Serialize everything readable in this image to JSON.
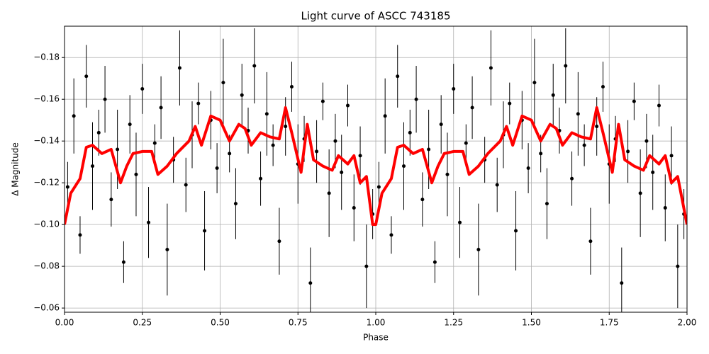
{
  "chart_data": {
    "type": "scatter",
    "title": "Light curve of ASCC 743185",
    "x_label": "Phase",
    "y_label": "Δ Magnitude",
    "xlim": [
      0,
      2
    ],
    "ylim": [
      -0.195,
      -0.058
    ],
    "y_inverted": true,
    "grid": true,
    "xticks": [
      {
        "value": 0,
        "label": "0.00"
      },
      0.25,
      {
        "value": 0.5,
        "label": "0.50"
      },
      0.75,
      {
        "value": 1,
        "label": "1.00"
      },
      1.25,
      {
        "value": 1.5,
        "label": "1.50"
      },
      1.75,
      {
        "value": 2,
        "label": "2.00"
      }
    ],
    "yticks": [
      {
        "value": -0.18,
        "label": "−0.18"
      },
      {
        "value": -0.16,
        "label": "−0.16"
      },
      {
        "value": -0.14,
        "label": "−0.14"
      },
      {
        "value": -0.12,
        "label": "−0.12"
      },
      {
        "value": -0.1,
        "label": "−0.10"
      },
      {
        "value": -0.08,
        "label": "−0.08"
      },
      {
        "value": -0.06,
        "label": "−0.06"
      }
    ],
    "series": [
      {
        "kind": "errorbar",
        "color": "#000000",
        "x": [
          0.01,
          0.03,
          0.05,
          0.07,
          0.09,
          0.11,
          0.13,
          0.15,
          0.17,
          0.19,
          0.21,
          0.23,
          0.25,
          0.27,
          0.29,
          0.31,
          0.33,
          0.35,
          0.37,
          0.39,
          0.41,
          0.43,
          0.45,
          0.47,
          0.49,
          0.51,
          0.53,
          0.55,
          0.57,
          0.59,
          0.61,
          0.63,
          0.65,
          0.67,
          0.69,
          0.71,
          0.73,
          0.75,
          0.77,
          0.79,
          0.81,
          0.83,
          0.85,
          0.87,
          0.89,
          0.91,
          0.93,
          0.95,
          0.97,
          0.99,
          1.01,
          1.03,
          1.05,
          1.07,
          1.09,
          1.11,
          1.13,
          1.15,
          1.17,
          1.19,
          1.21,
          1.23,
          1.25,
          1.27,
          1.29,
          1.31,
          1.33,
          1.35,
          1.37,
          1.39,
          1.41,
          1.43,
          1.45,
          1.47,
          1.49,
          1.51,
          1.53,
          1.55,
          1.57,
          1.59,
          1.61,
          1.63,
          1.65,
          1.67,
          1.69,
          1.71,
          1.73,
          1.75,
          1.77,
          1.79,
          1.81,
          1.83,
          1.85,
          1.87,
          1.89,
          1.91,
          1.93,
          1.95,
          1.97,
          1.99
        ],
        "values": [
          -0.118,
          -0.152,
          -0.095,
          -0.171,
          -0.128,
          -0.144,
          -0.16,
          -0.112,
          -0.136,
          -0.082,
          -0.148,
          -0.124,
          -0.165,
          -0.101,
          -0.139,
          -0.156,
          -0.088,
          -0.131,
          -0.175,
          -0.119,
          -0.143,
          -0.158,
          -0.097,
          -0.15,
          -0.127,
          -0.168,
          -0.134,
          -0.11,
          -0.162,
          -0.145,
          -0.176,
          -0.122,
          -0.153,
          -0.138,
          -0.092,
          -0.147,
          -0.166,
          -0.129,
          -0.141,
          -0.072,
          -0.135,
          -0.159,
          -0.115,
          -0.14,
          -0.125,
          -0.157,
          -0.108,
          -0.133,
          -0.08,
          -0.105,
          -0.118,
          -0.152,
          -0.095,
          -0.171,
          -0.128,
          -0.144,
          -0.16,
          -0.112,
          -0.136,
          -0.082,
          -0.148,
          -0.124,
          -0.165,
          -0.101,
          -0.139,
          -0.156,
          -0.088,
          -0.131,
          -0.175,
          -0.119,
          -0.143,
          -0.158,
          -0.097,
          -0.15,
          -0.127,
          -0.168,
          -0.134,
          -0.11,
          -0.162,
          -0.145,
          -0.176,
          -0.122,
          -0.153,
          -0.138,
          -0.092,
          -0.147,
          -0.166,
          -0.129,
          -0.141,
          -0.072,
          -0.135,
          -0.159,
          -0.115,
          -0.14,
          -0.125,
          -0.157,
          -0.108,
          -0.133,
          -0.08,
          -0.105
        ],
        "errors": [
          0.012,
          0.018,
          0.009,
          0.015,
          0.021,
          0.011,
          0.016,
          0.013,
          0.019,
          0.01,
          0.014,
          0.02,
          0.012,
          0.017,
          0.009,
          0.015,
          0.022,
          0.011,
          0.018,
          0.013,
          0.016,
          0.01,
          0.019,
          0.014,
          0.012,
          0.021,
          0.009,
          0.017,
          0.015,
          0.011,
          0.018,
          0.013,
          0.02,
          0.01,
          0.016,
          0.014,
          0.012,
          0.019,
          0.011,
          0.017,
          0.015,
          0.009,
          0.021,
          0.013,
          0.018,
          0.01,
          0.016,
          0.014,
          0.02,
          0.012,
          0.012,
          0.018,
          0.009,
          0.015,
          0.021,
          0.011,
          0.016,
          0.013,
          0.019,
          0.01,
          0.014,
          0.02,
          0.012,
          0.017,
          0.009,
          0.015,
          0.022,
          0.011,
          0.018,
          0.013,
          0.016,
          0.01,
          0.019,
          0.014,
          0.012,
          0.021,
          0.009,
          0.017,
          0.015,
          0.011,
          0.018,
          0.013,
          0.02,
          0.01,
          0.016,
          0.014,
          0.012,
          0.019,
          0.011,
          0.017,
          0.015,
          0.009,
          0.021,
          0.013,
          0.018,
          0.01,
          0.016,
          0.014,
          0.02,
          0.012
        ]
      },
      {
        "kind": "line",
        "color": "#ff0000",
        "x": [
          0,
          0.02,
          0.05,
          0.07,
          0.09,
          0.12,
          0.15,
          0.18,
          0.2,
          0.22,
          0.25,
          0.28,
          0.3,
          0.33,
          0.36,
          0.4,
          0.42,
          0.44,
          0.47,
          0.5,
          0.53,
          0.56,
          0.58,
          0.6,
          0.63,
          0.66,
          0.69,
          0.71,
          0.73,
          0.76,
          0.78,
          0.8,
          0.83,
          0.86,
          0.88,
          0.91,
          0.93,
          0.95,
          0.97,
          0.99,
          1.0,
          1.02,
          1.05,
          1.07,
          1.09,
          1.12,
          1.15,
          1.18,
          1.2,
          1.22,
          1.25,
          1.28,
          1.3,
          1.33,
          1.36,
          1.4,
          1.42,
          1.44,
          1.47,
          1.5,
          1.53,
          1.56,
          1.58,
          1.6,
          1.63,
          1.66,
          1.69,
          1.71,
          1.73,
          1.76,
          1.78,
          1.8,
          1.83,
          1.86,
          1.88,
          1.91,
          1.93,
          1.95,
          1.97,
          2.0
        ],
        "values": [
          -0.1,
          -0.115,
          -0.122,
          -0.137,
          -0.138,
          -0.134,
          -0.136,
          -0.12,
          -0.128,
          -0.134,
          -0.135,
          -0.135,
          -0.124,
          -0.128,
          -0.134,
          -0.14,
          -0.147,
          -0.138,
          -0.152,
          -0.15,
          -0.14,
          -0.148,
          -0.146,
          -0.138,
          -0.144,
          -0.142,
          -0.141,
          -0.156,
          -0.144,
          -0.125,
          -0.148,
          -0.131,
          -0.128,
          -0.126,
          -0.133,
          -0.129,
          -0.133,
          -0.12,
          -0.123,
          -0.1,
          -0.1,
          -0.115,
          -0.122,
          -0.137,
          -0.138,
          -0.134,
          -0.136,
          -0.12,
          -0.128,
          -0.134,
          -0.135,
          -0.135,
          -0.124,
          -0.128,
          -0.134,
          -0.14,
          -0.147,
          -0.138,
          -0.152,
          -0.15,
          -0.14,
          -0.148,
          -0.146,
          -0.138,
          -0.144,
          -0.142,
          -0.141,
          -0.156,
          -0.144,
          -0.125,
          -0.148,
          -0.131,
          -0.128,
          -0.126,
          -0.133,
          -0.129,
          -0.133,
          -0.12,
          -0.123,
          -0.1
        ]
      }
    ]
  }
}
